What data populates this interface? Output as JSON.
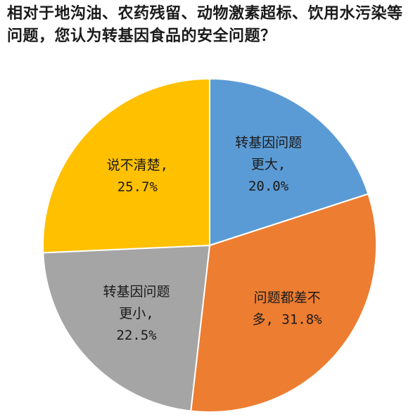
{
  "title": "相对于地沟油、农药残留、动物激素超标、饮用水污染等问题，您认为转基因食品的安全问题？",
  "chart_data": {
    "type": "pie",
    "title": "相对于地沟油、农药残留、动物激素超标、饮用水污染等问题，您认为转基因食品的安全问题？",
    "start_angle": "12 o'clock",
    "direction": "clockwise",
    "slices": [
      {
        "label": "转基因问题更大",
        "value": 20.0,
        "display": "20.0%",
        "color": "#5B9BD5",
        "label_lines": [
          "转基因问题",
          "更大,",
          "20.0%"
        ]
      },
      {
        "label": "问题都差不多",
        "value": 31.8,
        "display": "31.8%",
        "color": "#ED7D31",
        "label_lines": [
          "问题都差不",
          "多, 31.8%"
        ]
      },
      {
        "label": "转基因问题更小",
        "value": 22.5,
        "display": "22.5%",
        "color": "#A5A5A5",
        "label_lines": [
          "转基因问题",
          "更小,",
          "22.5%"
        ]
      },
      {
        "label": "说不清楚",
        "value": 25.7,
        "display": "25.7%",
        "color": "#FFC000",
        "label_lines": [
          "说不清楚,",
          "25.7%"
        ]
      }
    ]
  }
}
